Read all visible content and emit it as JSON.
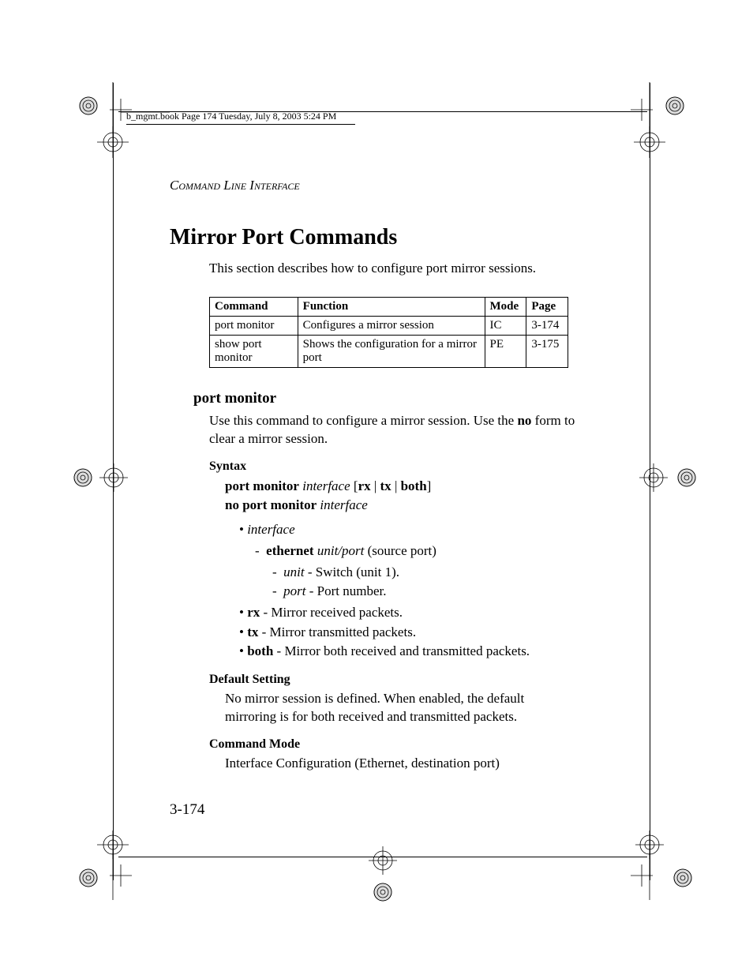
{
  "book_header": "b_mgmt.book  Page 174  Tuesday, July 8, 2003  5:24 PM",
  "running_head": "Command Line Interface",
  "section_title": "Mirror Port Commands",
  "intro": "This section describes how to configure port mirror sessions.",
  "table": {
    "headers": [
      "Command",
      "Function",
      "Mode",
      "Page"
    ],
    "rows": [
      [
        "port monitor",
        "Configures a mirror session",
        "IC",
        "3-174"
      ],
      [
        "show port monitor",
        "Shows the configuration for a mirror port",
        "PE",
        "3-175"
      ]
    ],
    "border_color": "#000000",
    "font_size": 15
  },
  "command": {
    "name": "port monitor",
    "description_parts": [
      "Use this command to configure a mirror session. Use the ",
      "no",
      " form to clear a mirror session."
    ],
    "syntax_label": "Syntax",
    "syntax_line1_parts": [
      {
        "t": "port monitor",
        "b": true
      },
      {
        "t": " "
      },
      {
        "t": "interface",
        "i": true
      },
      {
        "t": " ["
      },
      {
        "t": "rx",
        "b": true
      },
      {
        "t": " | "
      },
      {
        "t": "tx",
        "b": true
      },
      {
        "t": " | "
      },
      {
        "t": "both",
        "b": true
      },
      {
        "t": "]"
      }
    ],
    "syntax_line2_parts": [
      {
        "t": "no port monitor",
        "b": true
      },
      {
        "t": " "
      },
      {
        "t": "interface",
        "i": true
      }
    ],
    "params": {
      "interface": "interface",
      "ethernet_b": "ethernet",
      "ethernet_i": "unit/port",
      "ethernet_aft": " (source port)",
      "unit_i": "unit",
      "unit_aft": " - Switch (unit 1).",
      "port_i": "port",
      "port_aft": " - Port number.",
      "rx_b": "rx",
      "rx_aft": " - Mirror received packets.",
      "tx_b": "tx",
      "tx_aft": " - Mirror transmitted packets.",
      "both_b": "both",
      "both_aft": " - Mirror both received and transmitted packets."
    },
    "default_label": "Default Setting",
    "default_text": "No mirror session is defined. When enabled, the default mirroring is for both received and transmitted packets.",
    "mode_label": "Command Mode",
    "mode_text": "Interface Configuration (Ethernet, destination port)"
  },
  "page_number": "3-174",
  "colors": {
    "text": "#000000",
    "background": "#ffffff"
  }
}
